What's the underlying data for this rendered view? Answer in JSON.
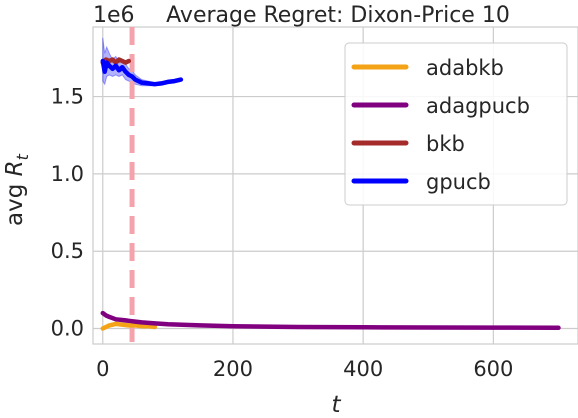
{
  "chart_data": {
    "type": "line",
    "title": "Average Regret: Dixon-Price 10",
    "xlabel": "t",
    "ylabel": "avg R_t",
    "y_offset_label": "1e6",
    "xlim": [
      -15,
      730
    ],
    "ylim": [
      -0.1,
      1.95
    ],
    "x_ticks": [
      0,
      200,
      400,
      600
    ],
    "y_ticks": [
      0.0,
      0.5,
      1.0,
      1.5
    ],
    "x_tick_labels": [
      "0",
      "200",
      "400",
      "600"
    ],
    "y_tick_labels": [
      "0.0",
      "0.5",
      "1.0",
      "1.5"
    ],
    "grid": true,
    "legend_position": "top-right",
    "vline": {
      "x": 45,
      "color": "#f4a3ad",
      "style": "dashed"
    },
    "series": [
      {
        "name": "adabkb",
        "color": "#f5a316",
        "x": [
          0,
          5,
          10,
          20,
          30,
          40,
          50,
          60,
          70,
          80
        ],
        "y": [
          0.0,
          0.01,
          0.02,
          0.03,
          0.025,
          0.02,
          0.02,
          0.015,
          0.015,
          0.01
        ]
      },
      {
        "name": "adagpucb",
        "color": "#800080",
        "x": [
          0,
          5,
          10,
          20,
          30,
          40,
          50,
          60,
          80,
          100,
          150,
          200,
          300,
          400,
          500,
          600,
          700
        ],
        "y": [
          0.1,
          0.085,
          0.075,
          0.06,
          0.055,
          0.05,
          0.045,
          0.04,
          0.033,
          0.028,
          0.02,
          0.015,
          0.01,
          0.008,
          0.007,
          0.006,
          0.005
        ]
      },
      {
        "name": "bkb",
        "color": "#a52a2a",
        "x": [
          0,
          5,
          10,
          15,
          20,
          25,
          30,
          35,
          40
        ],
        "y": [
          1.72,
          1.74,
          1.73,
          1.74,
          1.72,
          1.74,
          1.73,
          1.72,
          1.73
        ]
      },
      {
        "name": "gpucb",
        "color": "#0000ff",
        "x": [
          0,
          3,
          6,
          10,
          15,
          20,
          25,
          30,
          35,
          40,
          45,
          50,
          60,
          70,
          80,
          90,
          100,
          110,
          120
        ],
        "y": [
          1.73,
          1.66,
          1.72,
          1.7,
          1.68,
          1.7,
          1.67,
          1.69,
          1.66,
          1.64,
          1.63,
          1.61,
          1.59,
          1.585,
          1.58,
          1.585,
          1.595,
          1.6,
          1.61
        ],
        "band": {
          "lower": [
            1.6,
            1.58,
            1.63,
            1.64,
            1.63,
            1.64,
            1.63,
            1.64,
            1.61,
            1.6,
            1.59,
            1.58,
            1.57,
            1.57,
            1.57,
            1.575,
            1.585,
            1.59,
            1.6
          ],
          "upper": [
            1.88,
            1.78,
            1.82,
            1.78,
            1.74,
            1.76,
            1.72,
            1.74,
            1.71,
            1.68,
            1.67,
            1.64,
            1.61,
            1.6,
            1.59,
            1.595,
            1.605,
            1.61,
            1.62
          ]
        }
      }
    ]
  }
}
